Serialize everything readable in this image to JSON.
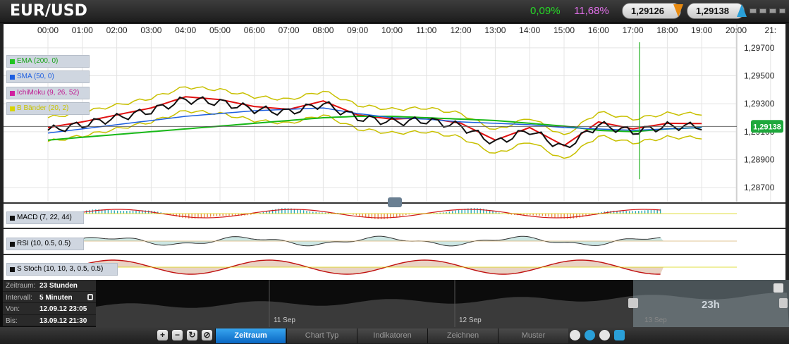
{
  "header": {
    "title": "EUR/USD",
    "change_abs": "0,09%",
    "change_pct": "11,68%",
    "bid": "1,29126",
    "ask": "1,29138"
  },
  "chart": {
    "time_labels": [
      "00:00",
      "01:00",
      "02:00",
      "03:00",
      "04:00",
      "05:00",
      "06:00",
      "07:00",
      "08:00",
      "09:00",
      "10:00",
      "11:00",
      "12:00",
      "13:00",
      "14:00",
      "15:00",
      "16:00",
      "17:00",
      "18:00",
      "19:00",
      "20:00",
      "21:"
    ],
    "price_labels": [
      "1,29700",
      "1,29500",
      "1,29300",
      "1,29100",
      "1,28900",
      "1,28700"
    ],
    "current_price": "1,29138",
    "overlays": [
      {
        "label": "EMA (200, 0)",
        "color": "#22c422"
      },
      {
        "label": "SMA (50, 0)",
        "color": "#1e5fe0"
      },
      {
        "label": "IchiMoku (9, 26, 52)",
        "color": "#d020a0"
      },
      {
        "label": "B Bänder (20, 2)",
        "color": "#d8d400"
      }
    ]
  },
  "chart_data": [
    {
      "type": "line",
      "title": "EUR/USD",
      "x": [
        "00:00",
        "01:00",
        "02:00",
        "03:00",
        "04:00",
        "05:00",
        "06:00",
        "07:00",
        "08:00",
        "09:00",
        "10:00",
        "11:00",
        "12:00",
        "13:00",
        "14:00",
        "15:00",
        "16:00",
        "17:00",
        "18:00",
        "19:00",
        "20:00"
      ],
      "series": [
        {
          "name": "EUR/USD",
          "values": [
            1.2911,
            1.2915,
            1.292,
            1.2925,
            1.2933,
            1.2931,
            1.2926,
            1.2924,
            1.293,
            1.292,
            1.2917,
            1.2918,
            1.2914,
            1.2902,
            1.2911,
            1.2898,
            1.2915,
            1.291,
            1.2914,
            1.29138,
            null
          ]
        },
        {
          "name": "EMA (200, 0)",
          "values": [
            1.2904,
            1.2906,
            1.2908,
            1.291,
            1.2912,
            1.2914,
            1.2916,
            1.2918,
            1.292,
            1.2921,
            1.2921,
            1.292,
            1.2919,
            1.2918,
            1.2916,
            1.2914,
            1.2911,
            1.291,
            1.2912,
            1.2913,
            null
          ]
        },
        {
          "name": "SMA (50, 0)",
          "values": [
            1.2909,
            1.2912,
            1.2915,
            1.2918,
            1.2921,
            1.2923,
            1.2925,
            1.2926,
            1.2927,
            1.2923,
            1.292,
            1.2919,
            1.2917,
            1.2916,
            1.2915,
            1.2913,
            1.2912,
            1.2911,
            1.2912,
            1.2913,
            null
          ]
        }
      ],
      "ylim": [
        1.286,
        1.298
      ],
      "ytick_labels": [
        "1,29700",
        "1,29500",
        "1,29300",
        "1,29100",
        "1,28900",
        "1,28700"
      ]
    }
  ],
  "indicators": [
    {
      "label": "MACD (7, 22, 44)"
    },
    {
      "label": "RSI (10, 0.5, 0.5)"
    },
    {
      "label": "S Stoch (10, 10, 3, 0.5, 0.5)"
    }
  ],
  "navigator": {
    "rows": [
      {
        "k": "Zeitraum:",
        "v": "23 Stunden"
      },
      {
        "k": "Intervall:",
        "v": "5 Minuten"
      },
      {
        "k": "Von:",
        "v": "12.09.12 23:05"
      },
      {
        "k": "Bis:",
        "v": "13.09.12 21:30"
      }
    ],
    "dates": [
      "11 Sep",
      "12 Sep",
      "13 Sep"
    ],
    "window_label": "23h"
  },
  "toolbar": {
    "tabs": [
      "Zeitraum",
      "Chart Typ",
      "Indikatoren",
      "Zeichnen",
      "Muster"
    ]
  }
}
